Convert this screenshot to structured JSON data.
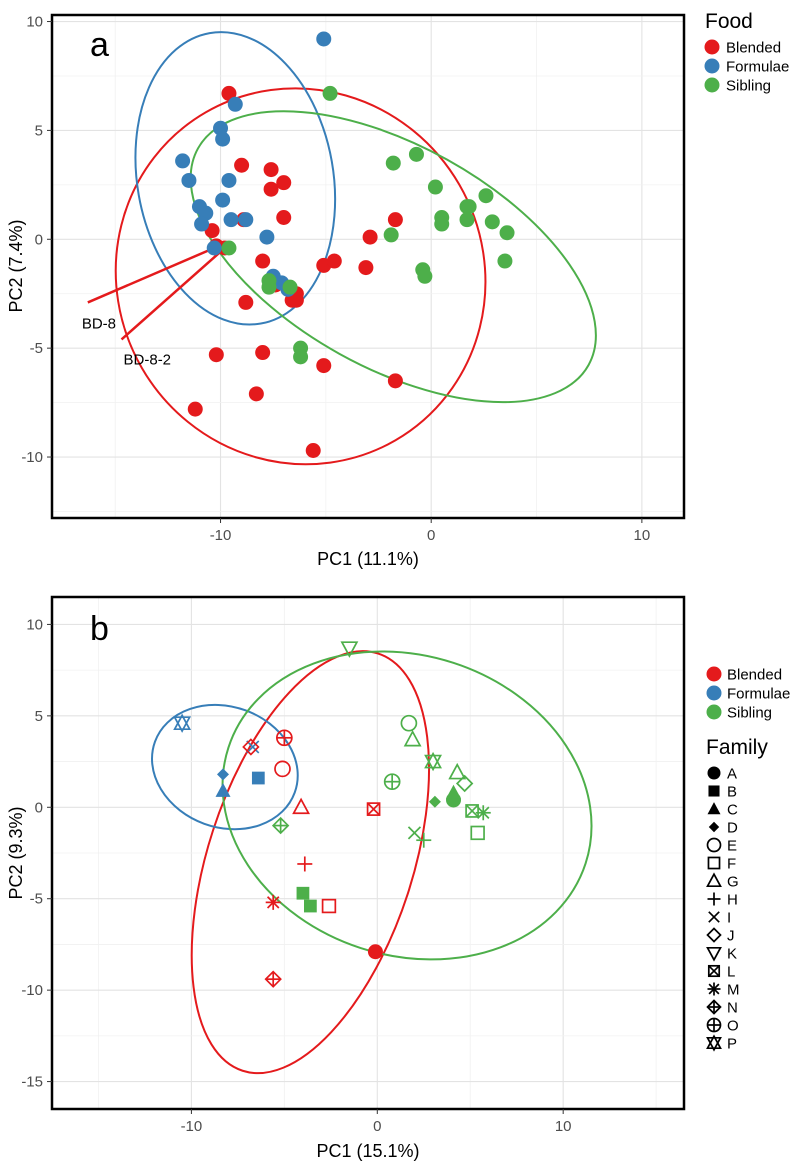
{
  "colors": {
    "Blended": "#e41a1c",
    "Formulae": "#377eb8",
    "Sibling": "#4daf4a"
  },
  "chart_data": [
    {
      "type": "scatter",
      "panel_label": "a",
      "xlabel": "PC1 (11.1%)",
      "ylabel": "PC2 (7.4%)",
      "xlim": [
        -18,
        12
      ],
      "ylim": [
        -12.8,
        10.3
      ],
      "xticks": [
        -10,
        0,
        10
      ],
      "yticks": [
        -10,
        -5,
        0,
        5,
        10
      ],
      "legend": {
        "title": "Food",
        "items": [
          "Blended",
          "Formulae",
          "Sibling"
        ]
      },
      "series": [
        {
          "name": "Blended",
          "points": [
            [
              -9.6,
              6.7
            ],
            [
              -9.0,
              3.4
            ],
            [
              -7.6,
              3.2
            ],
            [
              -7.6,
              2.3
            ],
            [
              -7.0,
              2.6
            ],
            [
              -7.0,
              1.0
            ],
            [
              -8.9,
              0.9
            ],
            [
              -10.4,
              0.4
            ],
            [
              -10.2,
              -0.3
            ],
            [
              -9.8,
              -0.4
            ],
            [
              -8.0,
              -1.0
            ],
            [
              -7.4,
              -2.1
            ],
            [
              -6.4,
              -2.5
            ],
            [
              -6.6,
              -2.8
            ],
            [
              -6.4,
              -2.8
            ],
            [
              -5.1,
              -1.2
            ],
            [
              -4.6,
              -1.0
            ],
            [
              -3.1,
              -1.3
            ],
            [
              -2.9,
              0.1
            ],
            [
              -1.7,
              0.9
            ],
            [
              -8.8,
              -2.9
            ],
            [
              -10.2,
              -5.3
            ],
            [
              -8.0,
              -5.2
            ],
            [
              -8.3,
              -7.1
            ],
            [
              -5.1,
              -5.8
            ],
            [
              -1.7,
              -6.5
            ],
            [
              -11.2,
              -7.8
            ],
            [
              -5.6,
              -9.7
            ]
          ]
        },
        {
          "name": "Formulae",
          "points": [
            [
              -5.1,
              9.2
            ],
            [
              -9.3,
              6.2
            ],
            [
              -10.0,
              5.1
            ],
            [
              -9.9,
              4.6
            ],
            [
              -11.8,
              3.6
            ],
            [
              -11.5,
              2.7
            ],
            [
              -9.6,
              2.7
            ],
            [
              -11.0,
              1.5
            ],
            [
              -9.9,
              1.8
            ],
            [
              -10.7,
              1.2
            ],
            [
              -10.9,
              0.7
            ],
            [
              -9.5,
              0.9
            ],
            [
              -8.8,
              0.9
            ],
            [
              -7.8,
              0.1
            ],
            [
              -10.3,
              -0.4
            ],
            [
              -7.5,
              -1.7
            ],
            [
              -7.1,
              -2.0
            ],
            [
              -6.8,
              -2.3
            ]
          ]
        },
        {
          "name": "Sibling",
          "points": [
            [
              -4.8,
              6.7
            ],
            [
              -1.8,
              3.5
            ],
            [
              -0.7,
              3.9
            ],
            [
              0.2,
              2.4
            ],
            [
              1.7,
              1.5
            ],
            [
              1.8,
              1.5
            ],
            [
              2.6,
              2.0
            ],
            [
              0.5,
              1.0
            ],
            [
              0.5,
              0.7
            ],
            [
              1.7,
              0.9
            ],
            [
              2.9,
              0.8
            ],
            [
              3.6,
              0.3
            ],
            [
              -1.9,
              0.2
            ],
            [
              -0.4,
              -1.4
            ],
            [
              -0.3,
              -1.7
            ],
            [
              3.5,
              -1.0
            ],
            [
              -9.6,
              -0.4
            ],
            [
              -7.7,
              -1.9
            ],
            [
              -7.7,
              -2.2
            ],
            [
              -6.7,
              -2.2
            ],
            [
              -6.2,
              -5.0
            ],
            [
              -6.2,
              -5.4
            ]
          ]
        }
      ],
      "ellipses": [
        {
          "name": "Blended",
          "cx": -6.2,
          "cy": -1.7,
          "rx": 8.7,
          "ry": 8.7,
          "rotation_deg": -30
        },
        {
          "name": "Formulae",
          "cx": -9.3,
          "cy": 2.8,
          "rx": 7.0,
          "ry": 4.5,
          "rotation_deg": 80
        },
        {
          "name": "Sibling",
          "cx": -1.8,
          "cy": -0.8,
          "rx": 10.6,
          "ry": 5.1,
          "rotation_deg": 29
        }
      ],
      "annotations": [
        {
          "text": "BD-8",
          "from": [
            -16.3,
            -2.9
          ],
          "to": [
            -10.3,
            -0.4
          ]
        },
        {
          "text": "BD-8-2",
          "from": [
            -14.7,
            -4.6
          ],
          "to": [
            -9.8,
            -0.4
          ]
        }
      ]
    },
    {
      "type": "scatter",
      "panel_label": "b",
      "xlabel": "PC1 (15.1%)",
      "ylabel": "PC2 (9.3%)",
      "xlim": [
        -17.5,
        16.5
      ],
      "ylim": [
        -16.5,
        11.5
      ],
      "xticks": [
        -10,
        0,
        10
      ],
      "yticks": [
        -15,
        -10,
        -5,
        0,
        5,
        10
      ],
      "legend": {
        "title": "Family",
        "food_items": [
          "Blended",
          "Formulae",
          "Sibling"
        ],
        "family_items": [
          "A",
          "B",
          "C",
          "D",
          "E",
          "F",
          "G",
          "H",
          "I",
          "J",
          "K",
          "L",
          "M",
          "N",
          "O",
          "P"
        ]
      },
      "points": [
        {
          "food": "Formulae",
          "family": "P",
          "x": -10.5,
          "y": 4.6
        },
        {
          "food": "Formulae",
          "family": "I",
          "x": -6.7,
          "y": 3.3
        },
        {
          "food": "Formulae",
          "family": "D",
          "x": -8.3,
          "y": 1.8
        },
        {
          "food": "Formulae",
          "family": "C",
          "x": -8.3,
          "y": 0.9
        },
        {
          "food": "Formulae",
          "family": "B",
          "x": -6.4,
          "y": 1.6
        },
        {
          "food": "Blended",
          "family": "J",
          "x": -6.8,
          "y": 3.3
        },
        {
          "food": "Blended",
          "family": "O",
          "x": -5.0,
          "y": 3.8
        },
        {
          "food": "Blended",
          "family": "E",
          "x": -5.1,
          "y": 2.1
        },
        {
          "food": "Blended",
          "family": "G",
          "x": -4.1,
          "y": 0.0
        },
        {
          "food": "Blended",
          "family": "L",
          "x": -0.2,
          "y": -0.1
        },
        {
          "food": "Blended",
          "family": "H",
          "x": -3.9,
          "y": -3.1
        },
        {
          "food": "Blended",
          "family": "M",
          "x": -5.6,
          "y": -5.2
        },
        {
          "food": "Blended",
          "family": "F",
          "x": -2.6,
          "y": -5.4
        },
        {
          "food": "Blended",
          "family": "N",
          "x": -5.6,
          "y": -9.4
        },
        {
          "food": "Blended",
          "family": "A",
          "x": -0.1,
          "y": -7.9
        },
        {
          "food": "Sibling",
          "family": "K",
          "x": -1.5,
          "y": 8.7
        },
        {
          "food": "Sibling",
          "family": "N",
          "x": -5.2,
          "y": -1.0
        },
        {
          "food": "Sibling",
          "family": "B",
          "x": -4.0,
          "y": -4.7
        },
        {
          "food": "Sibling",
          "family": "B",
          "x": -3.6,
          "y": -5.4
        },
        {
          "food": "Sibling",
          "family": "E",
          "x": 1.7,
          "y": 4.6
        },
        {
          "food": "Sibling",
          "family": "G",
          "x": 1.9,
          "y": 3.7
        },
        {
          "food": "Sibling",
          "family": "P",
          "x": 3.0,
          "y": 2.5
        },
        {
          "food": "Sibling",
          "family": "O",
          "x": 0.8,
          "y": 1.4
        },
        {
          "food": "Sibling",
          "family": "D",
          "x": 3.1,
          "y": 0.3
        },
        {
          "food": "Sibling",
          "family": "A",
          "x": 4.1,
          "y": 0.4
        },
        {
          "food": "Sibling",
          "family": "C",
          "x": 4.1,
          "y": 0.8
        },
        {
          "food": "Sibling",
          "family": "G",
          "x": 4.3,
          "y": 1.9
        },
        {
          "food": "Sibling",
          "family": "J",
          "x": 4.7,
          "y": 1.3
        },
        {
          "food": "Sibling",
          "family": "L",
          "x": 5.1,
          "y": -0.2
        },
        {
          "food": "Sibling",
          "family": "M",
          "x": 5.7,
          "y": -0.3
        },
        {
          "food": "Sibling",
          "family": "F",
          "x": 5.4,
          "y": -1.4
        },
        {
          "food": "Sibling",
          "family": "I",
          "x": 2.0,
          "y": -1.4
        },
        {
          "food": "Sibling",
          "family": "H",
          "x": 2.5,
          "y": -1.8
        }
      ],
      "ellipses": [
        {
          "name": "Blended",
          "cx": -3.6,
          "cy": -3.0,
          "rx": 11.8,
          "ry": 5.6,
          "rotation_deg": -72
        },
        {
          "name": "Formulae",
          "cx": -8.2,
          "cy": 2.2,
          "rx": 4.0,
          "ry": 3.3,
          "rotation_deg": 20
        },
        {
          "name": "Sibling",
          "cx": 1.6,
          "cy": 0.1,
          "rx": 10.1,
          "ry": 8.2,
          "rotation_deg": 18
        }
      ]
    }
  ]
}
